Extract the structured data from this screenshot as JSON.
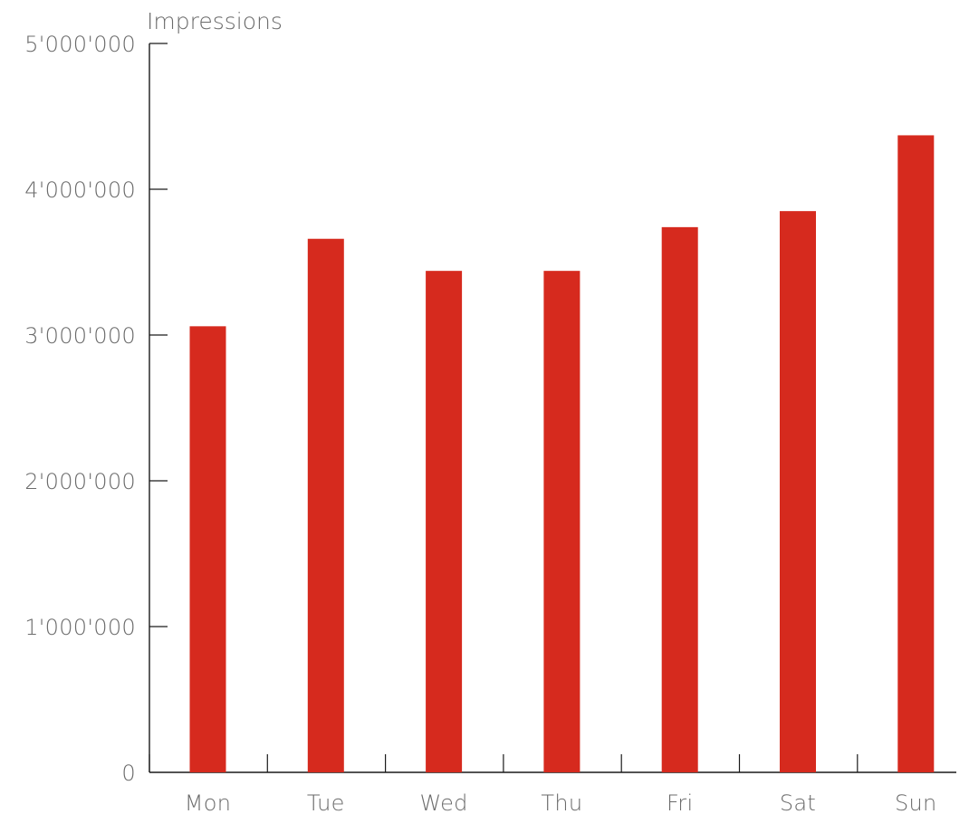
{
  "chart_data": {
    "type": "bar",
    "ylabel": "Impressions",
    "xlabel": "",
    "categories": [
      "Mon",
      "Tue",
      "Wed",
      "Thu",
      "Fri",
      "Sat",
      "Sun"
    ],
    "values": [
      3060000,
      3660000,
      3440000,
      3440000,
      3740000,
      3850000,
      4370000
    ],
    "ylim": [
      0,
      5000000
    ],
    "yticks": [
      0,
      1000000,
      2000000,
      3000000,
      4000000,
      5000000
    ],
    "ytick_labels": [
      "0",
      "1'000'000",
      "2'000'000",
      "3'000'000",
      "4'000'000",
      "5'000'000"
    ],
    "grid": false,
    "legend": "none",
    "bar_color": "#d62a1e"
  }
}
